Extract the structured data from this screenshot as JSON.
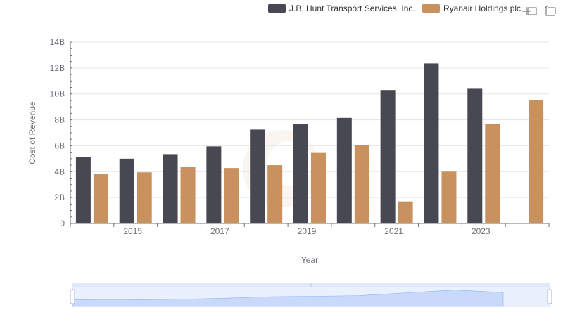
{
  "chart_data": {
    "type": "bar",
    "title": "",
    "xlabel": "Year",
    "ylabel": "Cost of Revenue",
    "ylim": [
      0,
      14000000000
    ],
    "y_ticks": [
      0,
      2000000000,
      4000000000,
      6000000000,
      8000000000,
      10000000000,
      12000000000,
      14000000000
    ],
    "y_tick_labels": [
      "0",
      "2B",
      "4B",
      "6B",
      "8B",
      "10B",
      "12B",
      "14B"
    ],
    "categories": [
      "2014",
      "2015",
      "2016",
      "2017",
      "2018",
      "2019",
      "2020",
      "2021",
      "2022",
      "2023",
      "2024"
    ],
    "x_tick_labels": [
      "",
      "2015",
      "",
      "2017",
      "",
      "2019",
      "",
      "2021",
      "",
      "2023",
      ""
    ],
    "grid": true,
    "legend_position": "top-right",
    "series": [
      {
        "name": "J.B. Hunt Transport Services, Inc.",
        "color": "#484852",
        "values": [
          5100000000,
          5000000000,
          5350000000,
          5950000000,
          7250000000,
          7650000000,
          8150000000,
          10300000000,
          12350000000,
          10450000000,
          null
        ]
      },
      {
        "name": "Ryanair Holdings plc",
        "color": "#c9915d",
        "values": [
          3800000000,
          3950000000,
          4350000000,
          4280000000,
          4500000000,
          5500000000,
          6050000000,
          1700000000,
          4000000000,
          7700000000,
          9550000000
        ]
      }
    ]
  },
  "zoom": {
    "range_start_percent": 0,
    "range_end_percent": 100,
    "handle_color": "#8fb0f7",
    "fill_color": "#d8e2fb"
  },
  "toolbox": {
    "zoom_icon": "zoom-crosshair-icon",
    "restore_icon": "restore-icon"
  }
}
